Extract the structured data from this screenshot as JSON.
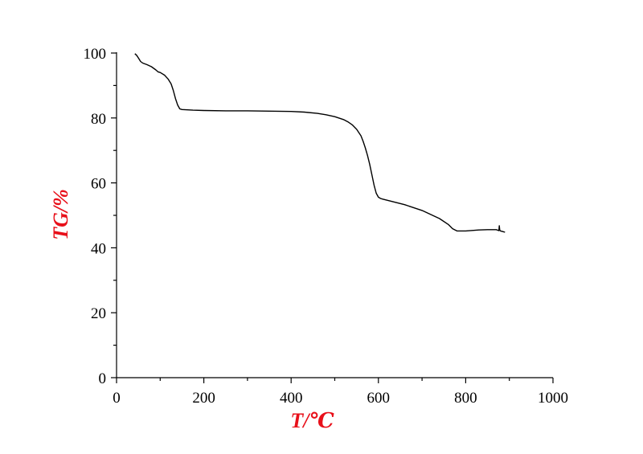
{
  "chart_data": {
    "type": "line",
    "title": "",
    "xlabel": "T/℃",
    "ylabel": "TG/%",
    "xlim": [
      0,
      1000
    ],
    "ylim": [
      0,
      100
    ],
    "x_ticks": [
      0,
      200,
      400,
      600,
      800,
      1000
    ],
    "x_tick_labels": [
      "0",
      "200",
      "400",
      "600",
      "800",
      "1000"
    ],
    "y_ticks": [
      0,
      20,
      40,
      60,
      80,
      100
    ],
    "y_tick_labels": [
      "0",
      "20",
      "40",
      "60",
      "80",
      "100"
    ],
    "grid": false,
    "legend": "none",
    "label_color": "#e8101a",
    "series": [
      {
        "color": "#000000",
        "x": [
          42,
          46,
          50,
          55,
          60,
          70,
          80,
          90,
          95,
          100,
          110,
          118,
          125,
          130,
          135,
          140,
          145,
          150,
          175,
          200,
          250,
          300,
          350,
          400,
          430,
          460,
          480,
          500,
          520,
          530,
          540,
          550,
          560,
          565,
          570,
          575,
          580,
          585,
          590,
          595,
          600,
          605,
          610,
          630,
          660,
          700,
          740,
          760,
          770,
          780,
          800,
          830,
          850,
          870,
          876,
          877,
          878,
          880,
          885,
          890
        ],
        "y": [
          99.8,
          99.3,
          98.5,
          97.4,
          96.9,
          96.4,
          95.8,
          94.8,
          94.2,
          94.0,
          93.2,
          92.0,
          90.5,
          88.5,
          86.0,
          84.0,
          82.8,
          82.6,
          82.4,
          82.3,
          82.2,
          82.2,
          82.1,
          82.0,
          81.8,
          81.4,
          81.0,
          80.4,
          79.5,
          78.8,
          77.9,
          76.5,
          74.5,
          72.8,
          70.8,
          68.5,
          65.8,
          62.5,
          59.3,
          56.8,
          55.6,
          55.2,
          55.0,
          54.3,
          53.3,
          51.5,
          49.0,
          47.2,
          45.9,
          45.2,
          45.2,
          45.5,
          45.6,
          45.6,
          45.3,
          46.8,
          45.4,
          45.2,
          45.0,
          44.8
        ]
      }
    ]
  }
}
